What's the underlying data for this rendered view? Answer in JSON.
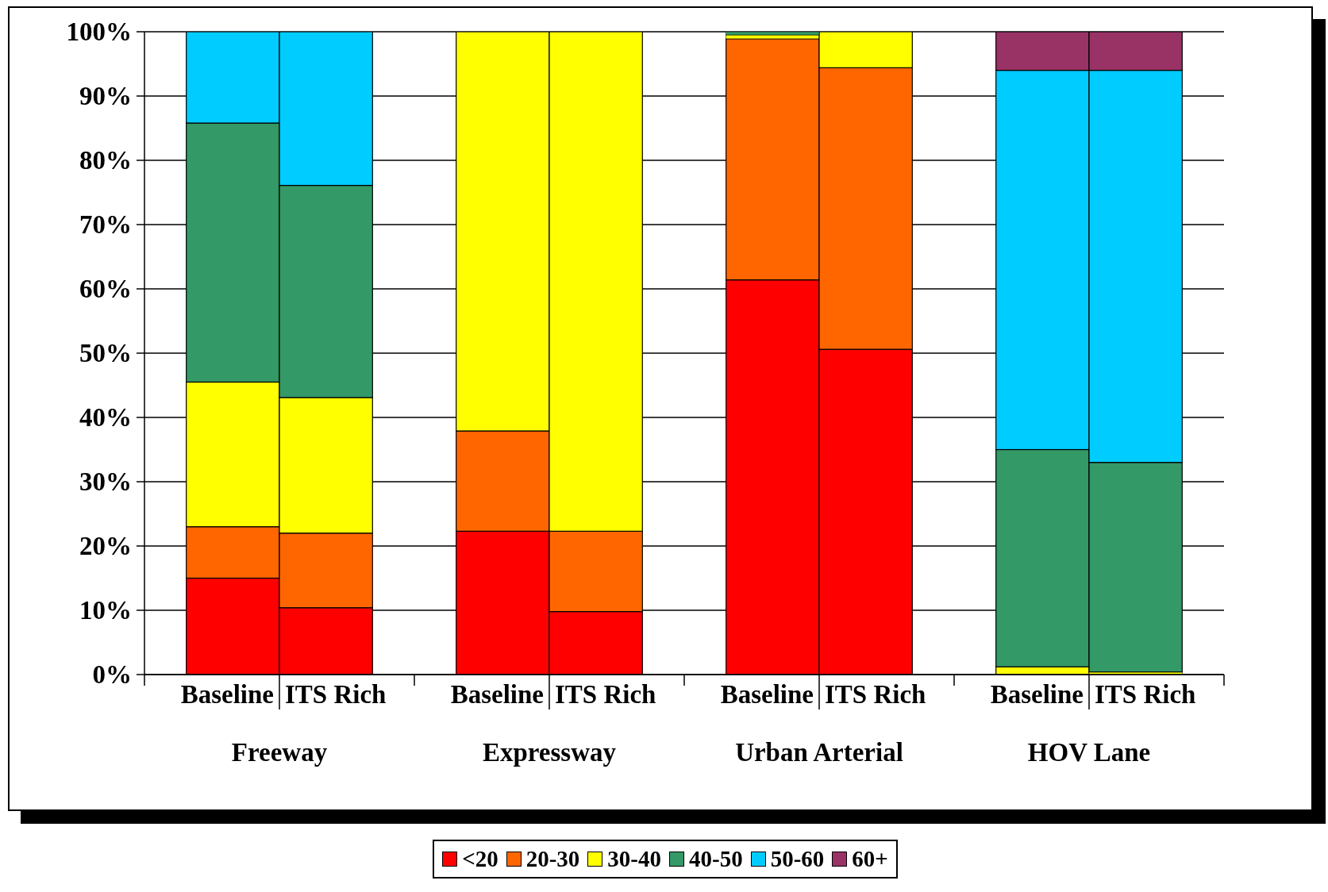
{
  "chart_data": {
    "type": "bar",
    "stacked": true,
    "categories": [
      "Baseline",
      "ITS Rich",
      "Baseline",
      "ITS Rich",
      "Baseline",
      "ITS Rich",
      "Baseline",
      "ITS Rich"
    ],
    "annotations": [
      "Freeway",
      "Expressway",
      "Urban Arterial",
      "HOV Lane"
    ],
    "series": [
      {
        "name": "<20",
        "color": "#ff0000",
        "values": [
          15,
          10.4,
          22.3,
          9.8,
          61.4,
          50.6,
          null,
          null
        ]
      },
      {
        "name": "20-30",
        "color": "#ff6600",
        "values": [
          8,
          11.6,
          15.6,
          12.5,
          37.5,
          43.8,
          null,
          null
        ]
      },
      {
        "name": "30-40",
        "color": "#ffff00",
        "values": [
          22.5,
          21.1,
          62.1,
          77.7,
          0.6,
          5.6,
          1.2,
          0.4
        ]
      },
      {
        "name": "40-50",
        "color": "#339966",
        "values": [
          40.3,
          33,
          null,
          null,
          0.5,
          null,
          33.8,
          32.6
        ]
      },
      {
        "name": "50-60",
        "color": "#00ccff",
        "values": [
          14.2,
          23.9,
          null,
          null,
          null,
          null,
          59,
          61
        ]
      },
      {
        "name": "60+",
        "color": "#993366",
        "values": [
          null,
          null,
          null,
          null,
          null,
          null,
          6,
          6
        ]
      }
    ],
    "ylim": [
      0,
      100
    ],
    "yticks": [
      {
        "value": 0,
        "label": "0%"
      },
      {
        "value": 10,
        "label": "10%"
      },
      {
        "value": 20,
        "label": "20%"
      },
      {
        "value": 30,
        "label": "30%"
      },
      {
        "value": 40,
        "label": "40%"
      },
      {
        "value": 50,
        "label": "50%"
      },
      {
        "value": 60,
        "label": "60%"
      },
      {
        "value": 70,
        "label": "70%"
      },
      {
        "value": 80,
        "label": "80%"
      },
      {
        "value": 90,
        "label": "90%"
      },
      {
        "value": 100,
        "label": "100%"
      }
    ],
    "grid": "y",
    "legend": "bottom"
  }
}
